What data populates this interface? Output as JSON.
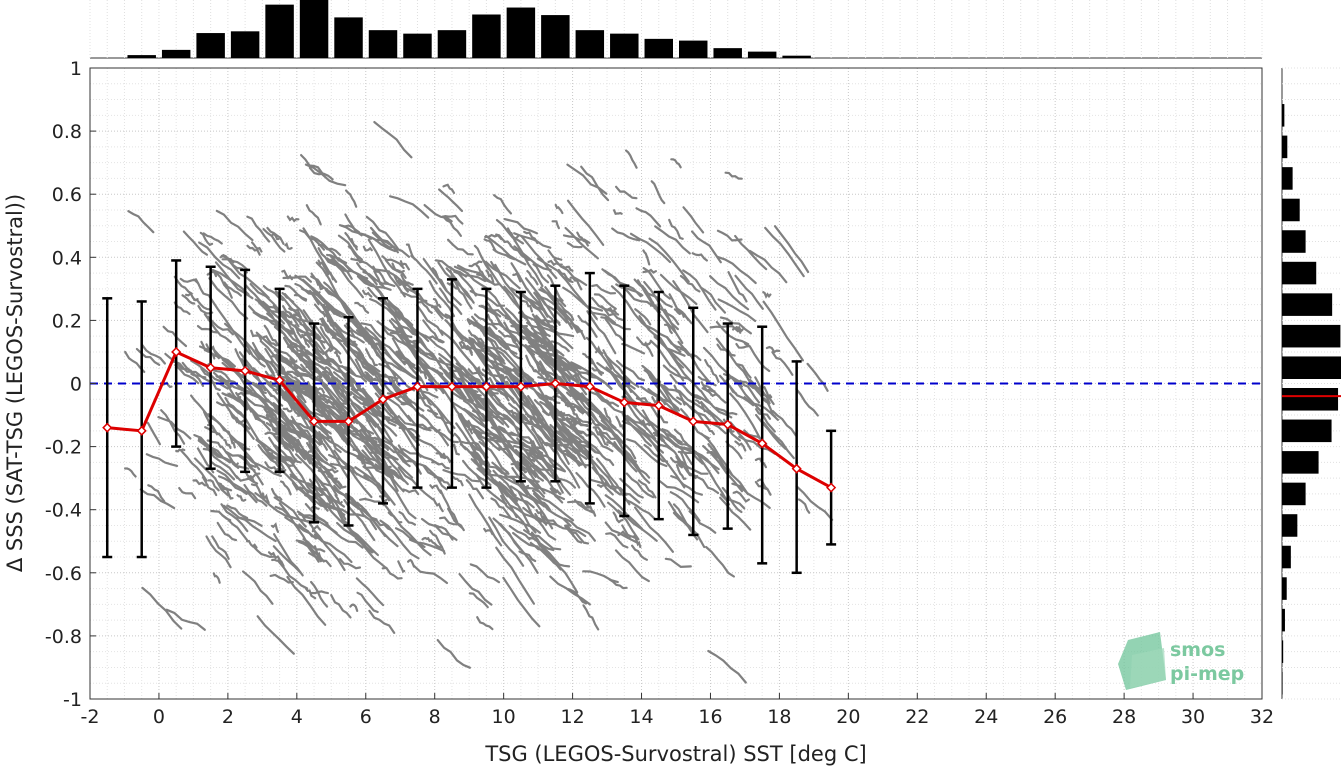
{
  "chart_data": {
    "type": "scatter",
    "xlabel": "TSG (LEGOS-Survostral) SST [deg C]",
    "ylabel": "Δ SSS (SAT-TSG (LEGOS-Survostral))",
    "xlim": [
      -2,
      32
    ],
    "ylim": [
      -1,
      1
    ],
    "x_ticks": [
      -2,
      0,
      2,
      4,
      6,
      8,
      10,
      12,
      14,
      16,
      18,
      20,
      22,
      24,
      26,
      28,
      30,
      32
    ],
    "y_ticks": [
      -1,
      -0.8,
      -0.6,
      -0.4,
      -0.2,
      0,
      0.2,
      0.4,
      0.6,
      0.8,
      1
    ],
    "x_tick_labels": [
      "-2",
      "0",
      "2",
      "4",
      "6",
      "8",
      "10",
      "12",
      "14",
      "16",
      "18",
      "20",
      "22",
      "24",
      "26",
      "28",
      "30",
      "32"
    ],
    "y_tick_labels": [
      "-1",
      "-0.8",
      "-0.6",
      "-0.4",
      "-0.2",
      "0",
      "0.2",
      "0.4",
      "0.6",
      "0.8",
      "1"
    ],
    "grid": true,
    "reference_line": {
      "y": 0,
      "style": "dashed",
      "color": "#0000cc"
    },
    "scatter_color": "#808080",
    "series": [
      {
        "type": "line-with-errorbars",
        "color": "#dd0000",
        "errorbar_color": "#000000",
        "x": [
          -1.5,
          -0.5,
          0.5,
          1.5,
          2.5,
          3.5,
          4.5,
          5.5,
          6.5,
          7.5,
          8.5,
          9.5,
          10.5,
          11.5,
          12.5,
          13.5,
          14.5,
          15.5,
          16.5,
          17.5,
          18.5,
          19.5
        ],
        "mean": [
          -0.14,
          -0.15,
          0.1,
          0.05,
          0.04,
          0.01,
          -0.12,
          -0.12,
          -0.05,
          -0.01,
          -0.01,
          -0.01,
          -0.01,
          0.0,
          -0.01,
          -0.06,
          -0.07,
          -0.12,
          -0.13,
          -0.19,
          -0.27,
          -0.33
        ],
        "upper": [
          0.27,
          0.26,
          0.39,
          0.37,
          0.36,
          0.3,
          0.19,
          0.21,
          0.27,
          0.3,
          0.33,
          0.3,
          0.29,
          0.31,
          0.35,
          0.31,
          0.29,
          0.24,
          0.19,
          0.18,
          0.07,
          -0.15
        ],
        "lower": [
          -0.55,
          -0.55,
          -0.2,
          -0.27,
          -0.28,
          -0.28,
          -0.44,
          -0.45,
          -0.38,
          -0.33,
          -0.33,
          -0.33,
          -0.31,
          -0.31,
          -0.38,
          -0.42,
          -0.43,
          -0.48,
          -0.46,
          -0.57,
          -0.6,
          -0.51
        ]
      }
    ],
    "top_histogram": {
      "bin_centers": [
        -0.5,
        0.5,
        1.5,
        2.5,
        3.5,
        4.5,
        5.5,
        6.5,
        7.5,
        8.5,
        9.5,
        10.5,
        11.5,
        12.5,
        13.5,
        14.5,
        15.5,
        16.5,
        17.5,
        18.5
      ],
      "values": [
        0.05,
        0.14,
        0.43,
        0.46,
        0.92,
        1.0,
        0.7,
        0.48,
        0.42,
        0.48,
        0.75,
        0.87,
        0.74,
        0.48,
        0.42,
        0.33,
        0.3,
        0.17,
        0.11,
        0.04
      ]
    },
    "right_histogram": {
      "bin_centers": [
        0.85,
        0.75,
        0.65,
        0.55,
        0.45,
        0.35,
        0.25,
        0.15,
        0.05,
        -0.05,
        -0.15,
        -0.25,
        -0.35,
        -0.45,
        -0.55,
        -0.65,
        -0.75,
        -0.85,
        -0.95
      ],
      "values": [
        0.04,
        0.09,
        0.18,
        0.3,
        0.4,
        0.58,
        0.85,
        0.99,
        1.0,
        0.95,
        0.84,
        0.62,
        0.4,
        0.26,
        0.15,
        0.08,
        0.05,
        0.02,
        0.01
      ],
      "median_marker": {
        "y": -0.04,
        "color": "#dd0000"
      }
    },
    "logo": {
      "line1": "smos",
      "line2": "pi-mep"
    }
  }
}
